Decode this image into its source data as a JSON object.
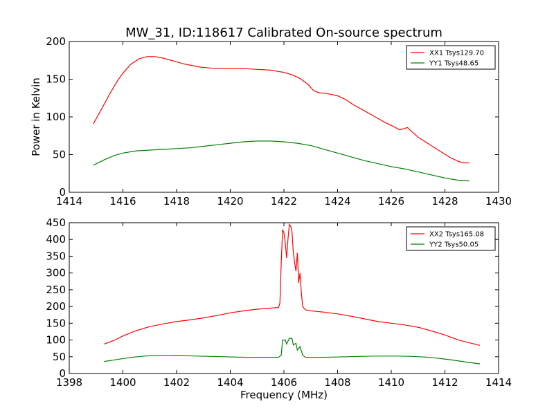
{
  "figure_title": "MW_31, ID:118617 Calibrated On-source spectrum",
  "chart_data": [
    {
      "type": "line",
      "title": "MW_31, ID:118617 Calibrated On-source spectrum",
      "xlabel": "",
      "ylabel": "Power in Kelvin",
      "xlim": [
        1414,
        1430
      ],
      "ylim": [
        0,
        200
      ],
      "xticks": [
        1414,
        1416,
        1418,
        1420,
        1422,
        1424,
        1426,
        1428,
        1430
      ],
      "yticks": [
        0,
        50,
        100,
        150,
        200
      ],
      "grid": false,
      "legend_position": "top-right",
      "series": [
        {
          "name": "XX1 Tsys129.70",
          "color": "#ff0000",
          "x": [
            1414.9,
            1415.2,
            1415.5,
            1415.8,
            1416.0,
            1416.3,
            1416.6,
            1416.9,
            1417.2,
            1417.5,
            1417.8,
            1418.0,
            1418.3,
            1418.6,
            1418.9,
            1419.2,
            1419.5,
            1419.8,
            1420.0,
            1420.5,
            1421.0,
            1421.5,
            1422.0,
            1422.3,
            1422.6,
            1422.9,
            1423.1,
            1423.3,
            1423.6,
            1424.0,
            1424.3,
            1424.6,
            1425.0,
            1425.4,
            1425.8,
            1426.1,
            1426.3,
            1426.45,
            1426.6,
            1426.75,
            1427.0,
            1427.4,
            1427.8,
            1428.2,
            1428.5,
            1428.7,
            1428.9
          ],
          "y": [
            91,
            110,
            130,
            148,
            158,
            170,
            177,
            180,
            180,
            178,
            175,
            173,
            170,
            168,
            166,
            165,
            164,
            164,
            164,
            164,
            163,
            162,
            159,
            156,
            151,
            143,
            135,
            132,
            131,
            128,
            123,
            116,
            108,
            100,
            92,
            87,
            83,
            84,
            86,
            81,
            73,
            64,
            55,
            46,
            41,
            39,
            39
          ]
        },
        {
          "name": "YY1 Tsys48.65",
          "color": "#008000",
          "x": [
            1414.9,
            1415.3,
            1415.7,
            1416.0,
            1416.5,
            1417.0,
            1417.5,
            1418.0,
            1418.5,
            1419.0,
            1419.5,
            1420.0,
            1420.5,
            1421.0,
            1421.5,
            1422.0,
            1422.5,
            1423.0,
            1423.5,
            1424.0,
            1424.5,
            1425.0,
            1425.5,
            1426.0,
            1426.5,
            1427.0,
            1427.5,
            1428.0,
            1428.5,
            1428.9
          ],
          "y": [
            36,
            43,
            49,
            52,
            55,
            56,
            57,
            58,
            59,
            61,
            63,
            65,
            67,
            68,
            68,
            67,
            65,
            62,
            57,
            52,
            47,
            42,
            38,
            34,
            31,
            27,
            23,
            19,
            16,
            15
          ]
        }
      ]
    },
    {
      "type": "line",
      "title": "",
      "xlabel": "Frequency (MHz)",
      "ylabel": "",
      "xlim": [
        1398,
        1414
      ],
      "ylim": [
        0,
        450
      ],
      "xticks": [
        1398,
        1400,
        1402,
        1404,
        1406,
        1408,
        1410,
        1412,
        1414
      ],
      "yticks": [
        0,
        50,
        100,
        150,
        200,
        250,
        300,
        350,
        400,
        450
      ],
      "grid": false,
      "legend_position": "top-right",
      "series": [
        {
          "name": "XX2 Tsys165.08",
          "color": "#ff0000",
          "x": [
            1399.3,
            1399.7,
            1400.0,
            1400.5,
            1401.0,
            1401.5,
            1402.0,
            1402.5,
            1403.0,
            1403.5,
            1404.0,
            1404.5,
            1405.0,
            1405.5,
            1405.8,
            1405.85,
            1405.9,
            1405.95,
            1406.0,
            1406.05,
            1406.1,
            1406.15,
            1406.2,
            1406.25,
            1406.3,
            1406.35,
            1406.4,
            1406.45,
            1406.5,
            1406.55,
            1406.6,
            1406.65,
            1406.7,
            1406.8,
            1407.0,
            1407.5,
            1408.0,
            1408.5,
            1409.0,
            1409.5,
            1410.0,
            1410.5,
            1411.0,
            1411.5,
            1412.0,
            1412.5,
            1413.0,
            1413.3
          ],
          "y": [
            88,
            100,
            112,
            128,
            140,
            148,
            155,
            160,
            166,
            173,
            181,
            187,
            192,
            195,
            197,
            210,
            330,
            430,
            420,
            390,
            345,
            400,
            445,
            440,
            425,
            360,
            330,
            305,
            360,
            270,
            300,
            240,
            200,
            190,
            187,
            183,
            178,
            171,
            163,
            155,
            150,
            145,
            138,
            127,
            115,
            100,
            90,
            84
          ]
        },
        {
          "name": "YY2 Tsys50.05",
          "color": "#008000",
          "x": [
            1399.3,
            1399.8,
            1400.3,
            1400.8,
            1401.3,
            1401.8,
            1402.3,
            1402.8,
            1403.3,
            1403.8,
            1404.3,
            1404.8,
            1405.3,
            1405.8,
            1405.9,
            1405.95,
            1406.05,
            1406.1,
            1406.2,
            1406.3,
            1406.35,
            1406.45,
            1406.5,
            1406.6,
            1406.7,
            1406.8,
            1407.3,
            1407.8,
            1408.3,
            1408.8,
            1409.3,
            1409.8,
            1410.3,
            1410.8,
            1411.3,
            1411.8,
            1412.3,
            1412.8,
            1413.3
          ],
          "y": [
            36,
            42,
            48,
            52,
            54,
            54,
            53,
            52,
            51,
            50,
            49,
            48,
            48,
            48,
            55,
            100,
            100,
            88,
            105,
            105,
            85,
            90,
            70,
            80,
            55,
            48,
            48,
            49,
            50,
            51,
            52,
            52,
            52,
            51,
            49,
            45,
            40,
            34,
            29
          ]
        }
      ]
    }
  ]
}
